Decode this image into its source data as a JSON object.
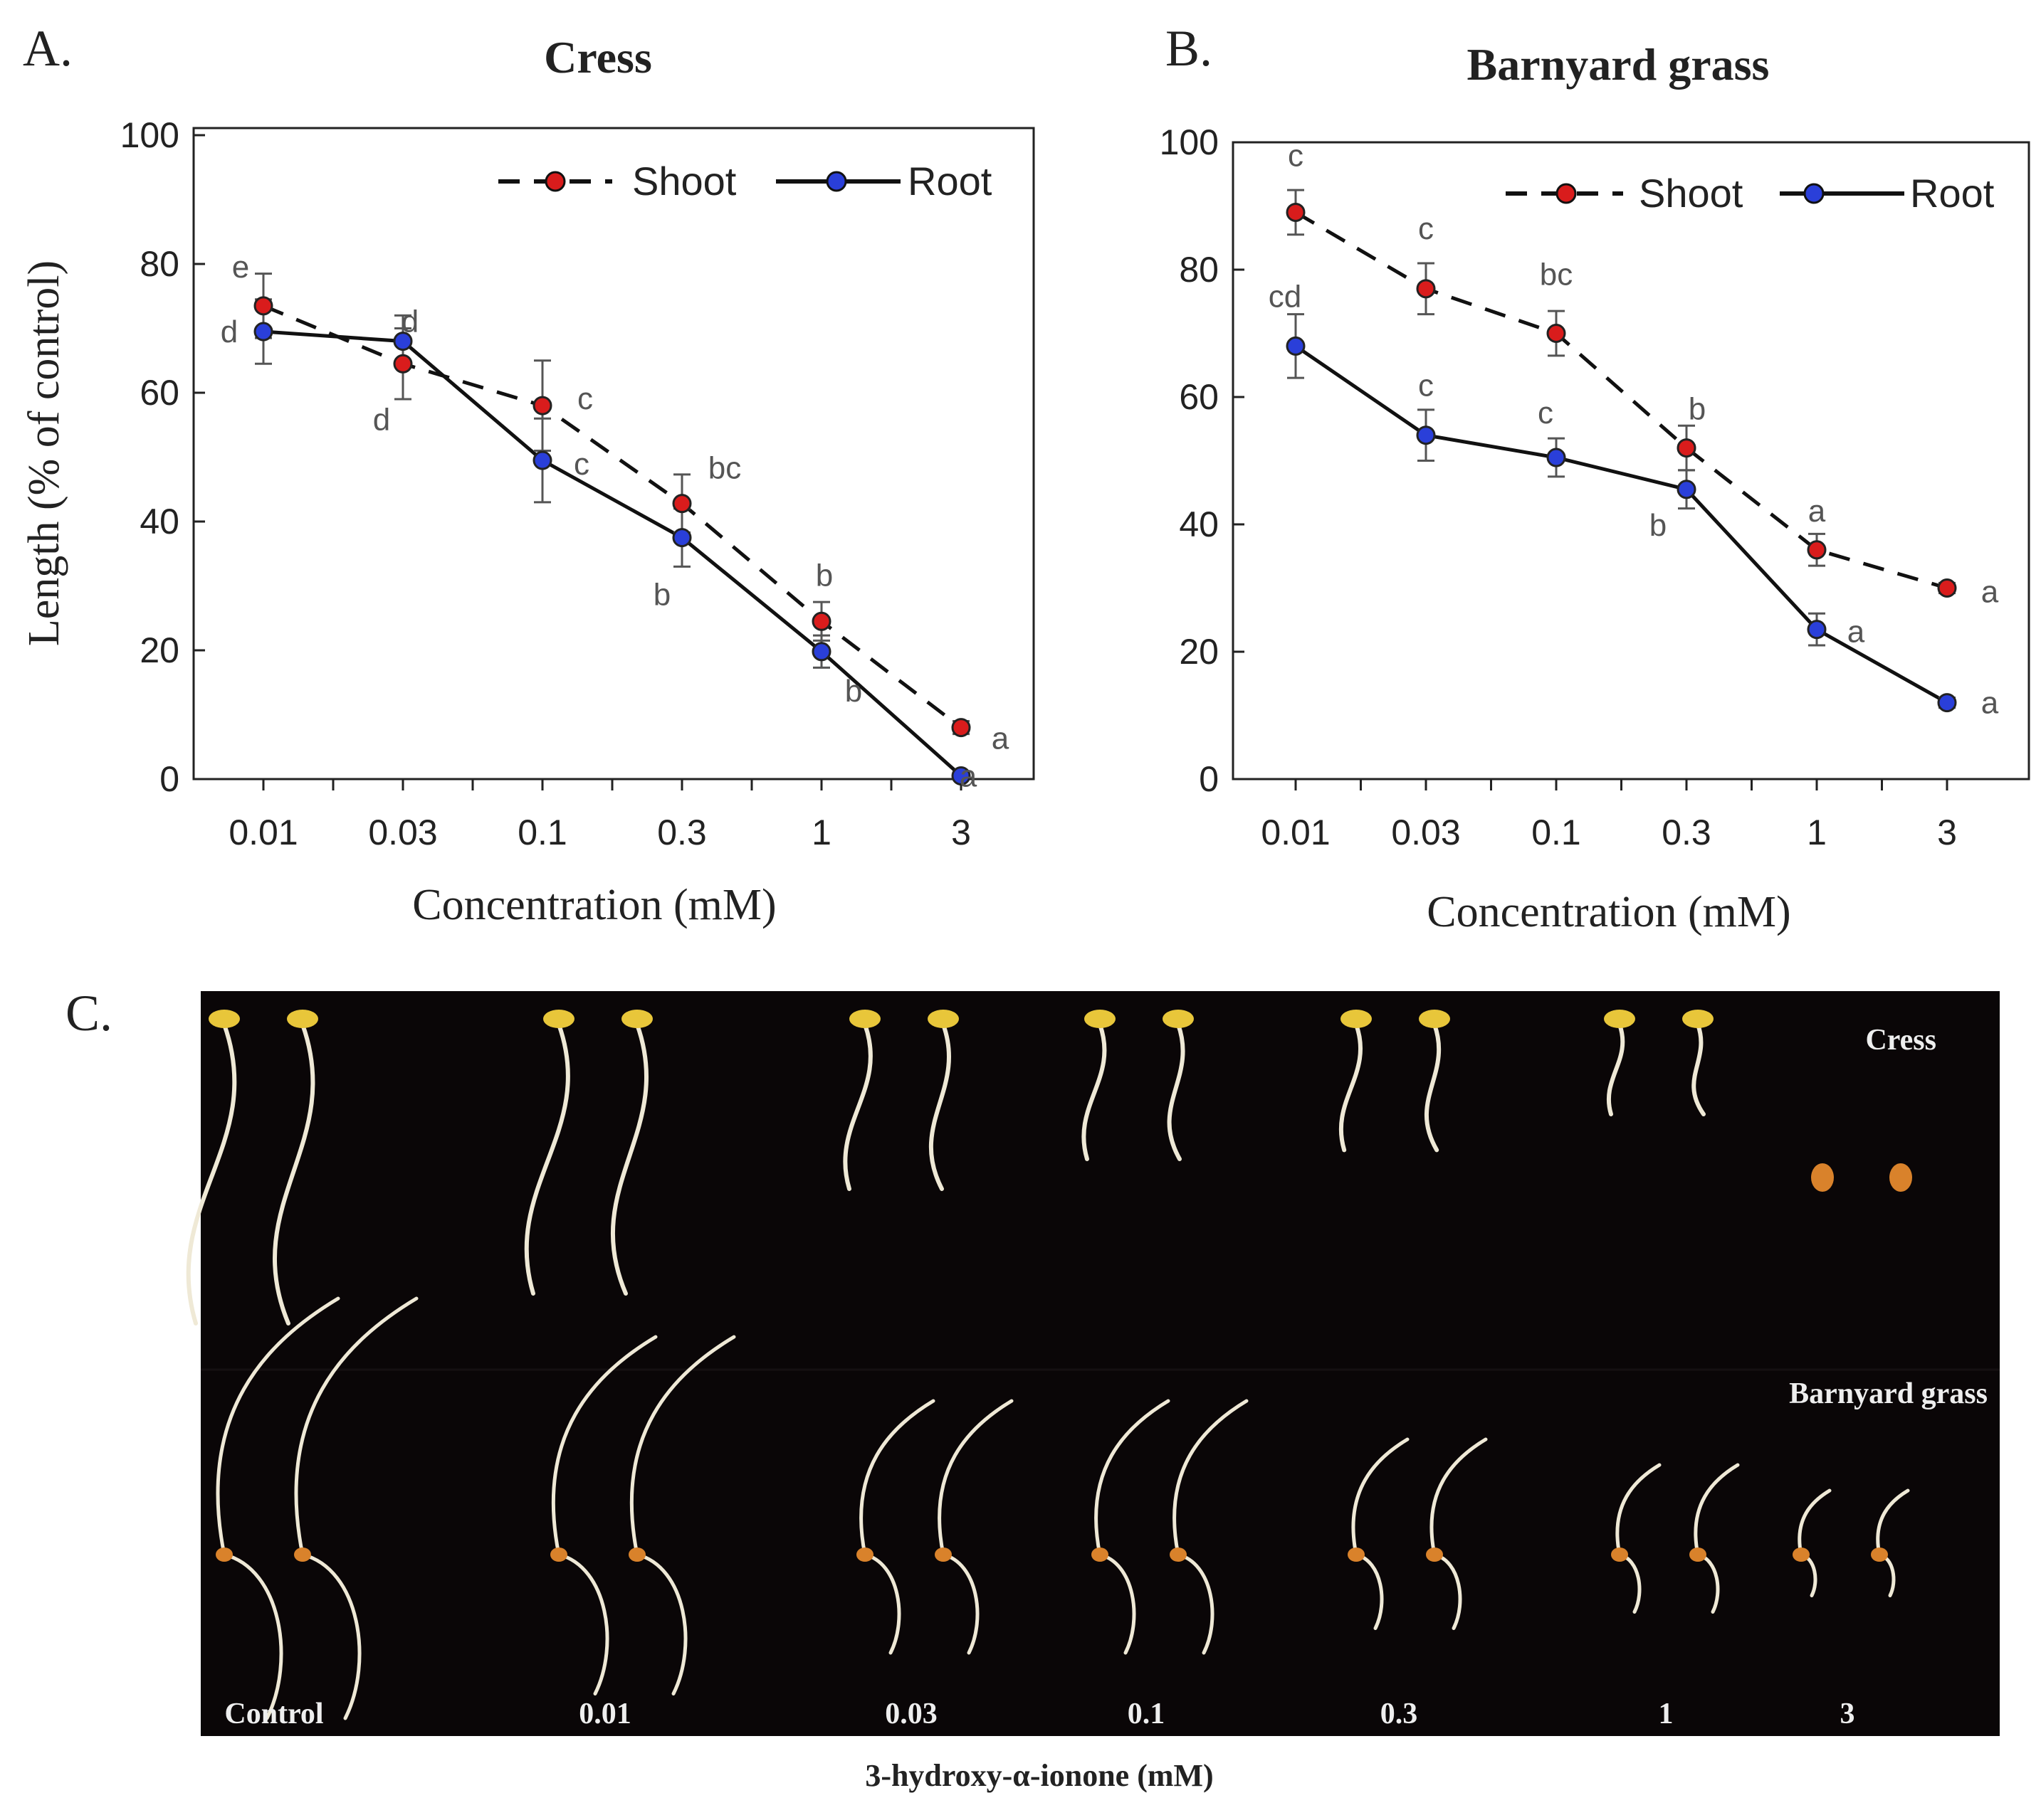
{
  "colors": {
    "shoot_fill": "#d91c1c",
    "root_fill": "#2a3fd9",
    "line": "#111111",
    "errorbar": "#555555",
    "photo_bg": "#0a0607",
    "seedling": "#efe9d6",
    "cotyledon": "#e8c63a",
    "seed": "#d9822b"
  },
  "chart_data": [
    {
      "panel": "A.",
      "type": "line",
      "title": "Cress",
      "xlabel": "Concentration (mM)",
      "ylabel": "Length (% of control)",
      "categories": [
        "0.01",
        "0.03",
        "0.1",
        "0.3",
        "1",
        "3"
      ],
      "ylim": [
        0,
        100
      ],
      "yticks": [
        "0",
        "20",
        "40",
        "60",
        "80",
        "100"
      ],
      "legend_position": "top-right",
      "series": [
        {
          "name": "Shoot",
          "style": "dashed",
          "values": [
            73.5,
            64.5,
            58,
            42.8,
            24.5,
            8
          ],
          "errors": [
            5,
            5.5,
            7,
            4.5,
            3,
            1
          ],
          "letters": [
            "e",
            "d",
            "c",
            "bc",
            "b",
            "a"
          ]
        },
        {
          "name": "Root",
          "style": "solid",
          "values": [
            69.5,
            68,
            49.5,
            37.5,
            19.8,
            0.5
          ],
          "errors": [
            5,
            4,
            6.5,
            4.5,
            2.5,
            0.5
          ],
          "letters": [
            "d",
            "d",
            "c",
            "b",
            "b",
            "a"
          ]
        }
      ]
    },
    {
      "panel": "B.",
      "type": "line",
      "title": "Barnyard grass",
      "xlabel": "Concentration (mM)",
      "ylabel": "",
      "categories": [
        "0.01",
        "0.03",
        "0.1",
        "0.3",
        "1",
        "3"
      ],
      "ylim": [
        0,
        100
      ],
      "yticks": [
        "0",
        "20",
        "40",
        "60",
        "80",
        "100"
      ],
      "legend_position": "top-right",
      "series": [
        {
          "name": "Shoot",
          "style": "dashed",
          "values": [
            89,
            77,
            70,
            52,
            36,
            30
          ],
          "errors": [
            3.5,
            4,
            3.5,
            3.5,
            2.5,
            0.8
          ],
          "letters": [
            "c",
            "c",
            "bc",
            "b",
            "a",
            "a"
          ]
        },
        {
          "name": "Root",
          "style": "solid",
          "values": [
            68,
            54,
            50.5,
            45.5,
            23.5,
            12
          ],
          "errors": [
            5,
            4,
            3,
            3,
            2.5,
            0.8
          ],
          "letters": [
            "cd",
            "c",
            "c",
            "b",
            "a",
            "a"
          ]
        }
      ]
    }
  ],
  "photo": {
    "panel": "C.",
    "row1_label": "Cress",
    "row2_label": "Barnyard grass",
    "column_labels": [
      "Control",
      "0.01",
      "0.03",
      "0.1",
      "0.3",
      "1",
      "3"
    ],
    "caption": "3-hydroxy-α-ionone (mM)"
  }
}
